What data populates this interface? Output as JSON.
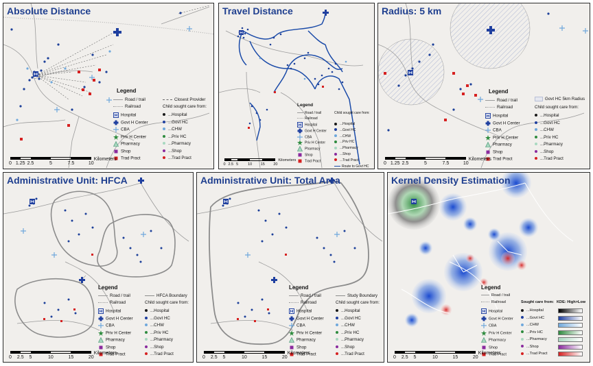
{
  "legend_common": {
    "title": "Legend",
    "road": "Road / trail",
    "railroad": "Railroad",
    "child_heading": "Child sought care from:",
    "providers": [
      {
        "name": "Hospital",
        "sought": "...Hospital",
        "color": "#1a1a1a"
      },
      {
        "name": "Govt H Center",
        "sought": "...Govt HC",
        "color": "#1f3f9f"
      },
      {
        "name": "CBA",
        "sought": "...CHW",
        "color": "#6fa8dc"
      },
      {
        "name": "Priv H Center",
        "sought": "...Priv HC",
        "color": "#2e8b3e"
      },
      {
        "name": "Pharmacy",
        "sought": "...Pharmacy",
        "color": "#a8d8c0"
      },
      {
        "name": "Shop",
        "sought": "...Shop",
        "color": "#8a2a9e"
      },
      {
        "name": "Trad Pract",
        "sought": "...Trad Pract",
        "color": "#d62020"
      }
    ]
  },
  "colors": {
    "title": "#1f3f8f",
    "govt": "#1f3f9f",
    "point": "#1c3f99",
    "trad": "#d62020",
    "road": "#8c8c8c"
  },
  "panels": [
    {
      "id": "absolute",
      "title": "Absolute Distance",
      "extra": "Closest Provider",
      "scale": {
        "ticks": [
          "0",
          "1.25",
          "2.5",
          "5",
          "7.5",
          "10"
        ],
        "unit": "Kilometers"
      }
    },
    {
      "id": "travel",
      "title": "Travel Distance",
      "extra": "Route to Govt HC",
      "scale": {
        "ticks": [
          "0",
          "2.5",
          "5",
          "10",
          "15",
          "20"
        ],
        "unit": "Kilometers"
      }
    },
    {
      "id": "radius",
      "title": "Radius: 5 km",
      "extra": "Govt HC 5km Radius",
      "scale": {
        "ticks": [
          "0",
          "1.25",
          "2.5",
          "5",
          "7.5",
          "10"
        ],
        "unit": "Kilometers"
      }
    },
    {
      "id": "hfca",
      "title": "Administrative Unit: HFCA",
      "extra": "HFCA Boundary",
      "scale": {
        "ticks": [
          "0",
          "2.5",
          "5",
          "10",
          "15",
          "20"
        ],
        "unit": "Kilometers"
      }
    },
    {
      "id": "total",
      "title": "Administrative Unit: Total Area",
      "extra": "Study Boundary",
      "scale": {
        "ticks": [
          "0",
          "2.5",
          "5",
          "10",
          "15",
          "20"
        ],
        "unit": "Kilometers"
      }
    },
    {
      "id": "kde",
      "title": "Kernel Density Estimation",
      "extra": "KDE: High>Low",
      "sought_heading": "Sought care from:",
      "scale": {
        "ticks": [
          "0",
          "2.5",
          "5",
          "10",
          "15",
          "20"
        ],
        "unit": "Kilometers"
      }
    }
  ]
}
